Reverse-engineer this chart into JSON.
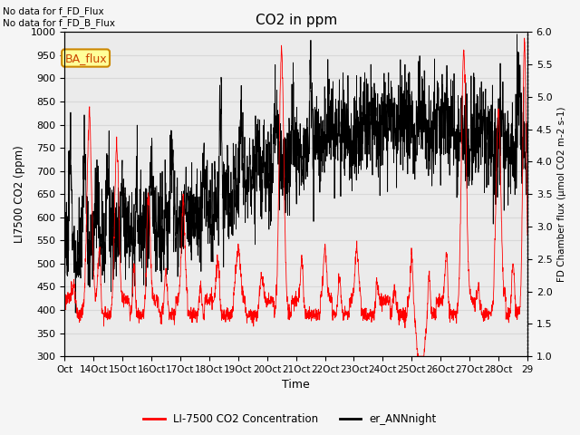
{
  "title": "CO2 in ppm",
  "xlabel": "Time",
  "ylabel_left": "LI7500 CO2 (ppm)",
  "ylabel_right": "FD Chamber flux (μmol CO2 m-2 s-1)",
  "ylim_left": [
    300,
    1000
  ],
  "ylim_right": [
    1.0,
    6.0
  ],
  "yticks_left": [
    300,
    350,
    400,
    450,
    500,
    550,
    600,
    650,
    700,
    750,
    800,
    850,
    900,
    950,
    1000
  ],
  "yticks_right": [
    1.0,
    1.5,
    2.0,
    2.5,
    3.0,
    3.5,
    4.0,
    4.5,
    5.0,
    5.5,
    6.0
  ],
  "xtick_labels": [
    "Oct",
    "14Oct",
    "15Oct",
    "16Oct",
    "17Oct",
    "18Oct",
    "19Oct",
    "20Oct",
    "21Oct",
    "22Oct",
    "23Oct",
    "24Oct",
    "25Oct",
    "26Oct",
    "27Oct",
    "28Oct",
    "29"
  ],
  "top_text_1": "No data for f_FD_Flux",
  "top_text_2": "No data for f_FD_B_Flux",
  "ba_flux_label": "BA_flux",
  "legend_red_label": "LI-7500 CO2 Concentration",
  "legend_black_label": "er_ANNnight",
  "red_color": "#ff0000",
  "black_color": "#000000",
  "ba_flux_bg": "#ffff99",
  "ba_flux_border": "#cc8800",
  "grid_color": "#d8d8d8",
  "plot_bg": "#ebebeb",
  "fig_bg": "#f5f5f5"
}
